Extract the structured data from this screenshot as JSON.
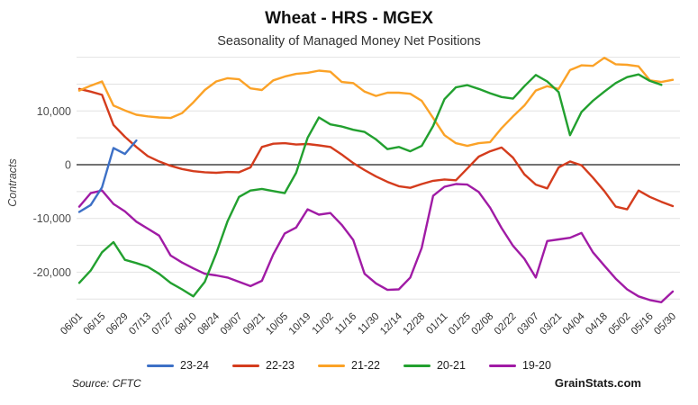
{
  "header": {
    "title": "Wheat - HRS - MGEX",
    "subtitle": "Seasonality of Managed Money Net Positions"
  },
  "footer": {
    "source": "Source: CFTC",
    "brand": "GrainStats.com"
  },
  "chart_data": {
    "type": "line",
    "title": "Wheat - HRS - MGEX",
    "subtitle": "Seasonality of Managed Money Net Positions",
    "ylabel": "Contracts",
    "xlabel": "",
    "ylim": [
      -27000,
      21500
    ],
    "grid": "horizontal, every 5000",
    "legend_position": "bottom",
    "points_per_tick": 2,
    "x_tick_labels": [
      "06/01",
      "06/15",
      "06/29",
      "07/13",
      "07/27",
      "08/10",
      "08/24",
      "09/07",
      "09/21",
      "10/05",
      "10/19",
      "11/02",
      "11/16",
      "11/30",
      "12/14",
      "12/28",
      "01/11",
      "01/25",
      "02/08",
      "02/22",
      "03/07",
      "03/21",
      "04/04",
      "04/18",
      "05/02",
      "05/16",
      "05/30"
    ],
    "y_ticks": [
      {
        "label": "10,000",
        "value": 10000
      },
      {
        "label": "0",
        "value": 0
      },
      {
        "label": "-10,000",
        "value": -10000
      },
      {
        "label": "-20,000",
        "value": -20000
      }
    ],
    "grid_values": [
      20000,
      15000,
      10000,
      5000,
      0,
      -5000,
      -10000,
      -15000,
      -20000,
      -25000
    ],
    "draw_order": [
      4,
      1,
      2,
      3,
      0
    ],
    "series": [
      {
        "name": "23-24",
        "color": "#3d70c6",
        "cadence": "weekly from 06/01",
        "values": [
          -8800,
          -7500,
          -4200,
          3100,
          2000,
          4500
        ]
      },
      {
        "name": "22-23",
        "color": "#d43c1d",
        "cadence": "weekly from 06/01",
        "values": [
          14100,
          13600,
          13000,
          7400,
          5200,
          3300,
          1600,
          600,
          -200,
          -800,
          -1200,
          -1400,
          -1500,
          -1350,
          -1400,
          -500,
          3300,
          3900,
          4000,
          3750,
          3850,
          3600,
          3300,
          1900,
          300,
          -1000,
          -2200,
          -3200,
          -4000,
          -4300,
          -3600,
          -3000,
          -2750,
          -2900,
          -700,
          1500,
          2500,
          3200,
          1300,
          -1800,
          -3700,
          -4400,
          -500,
          600,
          -100,
          -2400,
          -4900,
          -7800,
          -8300,
          -4800,
          -6000,
          -6900,
          -7700
        ]
      },
      {
        "name": "21-22",
        "color": "#fba227",
        "cadence": "weekly from 06/01",
        "values": [
          13800,
          14700,
          15500,
          11000,
          10100,
          9300,
          9000,
          8800,
          8700,
          9600,
          11600,
          13900,
          15500,
          16100,
          15900,
          14200,
          13900,
          15700,
          16400,
          16900,
          17100,
          17500,
          17300,
          15400,
          15200,
          13600,
          12800,
          13400,
          13400,
          13200,
          11900,
          8700,
          5500,
          4000,
          3500,
          4000,
          4200,
          6800,
          9000,
          11000,
          13800,
          14600,
          14100,
          17600,
          18500,
          18400,
          19900,
          18700,
          18600,
          18300,
          15700,
          15400,
          15800
        ]
      },
      {
        "name": "20-21",
        "color": "#22a02f",
        "cadence": "weekly from 06/01",
        "values": [
          -22000,
          -19700,
          -16300,
          -14400,
          -17700,
          -18300,
          -19000,
          -20300,
          -22000,
          -23200,
          -24500,
          -21800,
          -16500,
          -10500,
          -6000,
          -4800,
          -4500,
          -4900,
          -5300,
          -1500,
          5000,
          8800,
          7500,
          7100,
          6500,
          6100,
          4700,
          2900,
          3300,
          2500,
          3500,
          7200,
          12200,
          14400,
          14800,
          14100,
          13300,
          12600,
          12300,
          14600,
          16700,
          15500,
          13500,
          5500,
          9800,
          11900,
          13600,
          15200,
          16300,
          16800,
          15600,
          14850
        ]
      },
      {
        "name": "19-20",
        "color": "#a01ba5",
        "cadence": "weekly from 06/01",
        "values": [
          -7800,
          -5300,
          -4800,
          -7300,
          -8700,
          -10600,
          -11900,
          -13200,
          -16900,
          -18200,
          -19300,
          -20300,
          -20600,
          -21000,
          -21800,
          -22600,
          -21600,
          -16700,
          -12800,
          -11700,
          -8300,
          -9300,
          -9000,
          -11200,
          -14000,
          -20300,
          -22100,
          -23300,
          -23200,
          -21000,
          -15500,
          -5800,
          -4100,
          -3600,
          -3700,
          -5100,
          -8000,
          -11800,
          -15100,
          -17500,
          -21000,
          -14200,
          -13900,
          -13600,
          -12700,
          -16300,
          -18800,
          -21200,
          -23200,
          -24500,
          -25200,
          -25600,
          -23600
        ]
      }
    ]
  }
}
